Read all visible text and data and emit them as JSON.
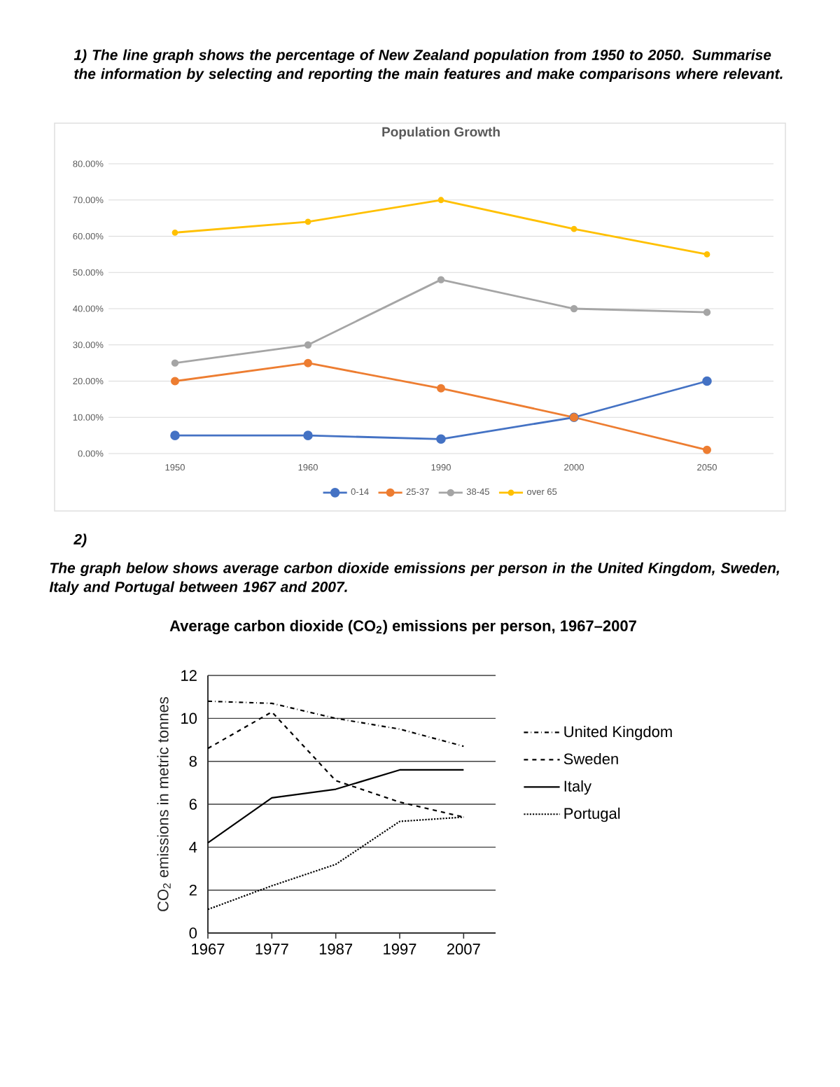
{
  "chart_data": [
    {
      "type": "line",
      "title": "Population Growth",
      "annotations": [
        "1) The line graph shows the percentage of New Zealand population from 1950 to 2050. Summarise the information by selecting and reporting the main features and make comparisons where relevant."
      ],
      "categories": [
        "1950",
        "1960",
        "1990",
        "2000",
        "2050"
      ],
      "series": [
        {
          "name": "0-14",
          "color": "#4472c4",
          "values": [
            5,
            5,
            4,
            10,
            20
          ]
        },
        {
          "name": "25-37",
          "color": "#ed7d31",
          "values": [
            20,
            25,
            18,
            10,
            1
          ]
        },
        {
          "name": "38-45",
          "color": "#a5a5a5",
          "values": [
            25,
            30,
            48,
            40,
            39
          ]
        },
        {
          "name": "over 65",
          "color": "#ffc000",
          "values": [
            61,
            64,
            70,
            62,
            55
          ]
        }
      ],
      "ylim": [
        0,
        80
      ],
      "yticks": [
        {
          "value": 0,
          "label": "0.00%"
        },
        {
          "value": 10,
          "label": "10.00%"
        },
        {
          "value": 20,
          "label": "20.00%"
        },
        {
          "value": 30,
          "label": "30.00%"
        },
        {
          "value": 40,
          "label": "40.00%"
        },
        {
          "value": 50,
          "label": "50.00%"
        },
        {
          "value": 60,
          "label": "60.00%"
        },
        {
          "value": 70,
          "label": "70.00%"
        },
        {
          "value": 80,
          "label": "80.00%"
        }
      ],
      "grid": "y",
      "legend": "bottom",
      "marker": "circle",
      "line_style": "solid"
    },
    {
      "type": "line",
      "title": "Average carbon dioxide (CO$_{2}$) emissions per person, 1967–2007",
      "ylabel": "CO$_{2}$ emissions in metric tonnes",
      "annotations": [
        "2)",
        "The graph below shows average carbon dioxide emissions per person in the United Kingdom, Sweden, Italy and Portugal between 1967 and 2007."
      ],
      "x": [
        1967,
        1977,
        1987,
        1997,
        2007
      ],
      "series": [
        {
          "name": "United Kingdom",
          "color": "#000000",
          "line_style": "dashdot",
          "values": [
            10.8,
            10.7,
            10.0,
            9.5,
            8.7
          ]
        },
        {
          "name": "Sweden",
          "color": "#000000",
          "line_style": "dashed",
          "values": [
            8.6,
            10.3,
            7.1,
            6.1,
            5.4
          ]
        },
        {
          "name": "Italy",
          "color": "#000000",
          "line_style": "solid",
          "values": [
            4.2,
            6.3,
            6.7,
            7.6,
            7.6
          ]
        },
        {
          "name": "Portugal",
          "color": "#000000",
          "line_style": "dotted",
          "values": [
            1.1,
            2.2,
            3.2,
            5.2,
            5.4
          ]
        }
      ],
      "xlim": [
        1967,
        2012
      ],
      "xticks": [
        1967,
        1977,
        1987,
        1997,
        2007
      ],
      "ylim": [
        0,
        12
      ],
      "yticks": [
        0,
        2,
        4,
        6,
        8,
        10,
        12
      ],
      "grid": "y",
      "legend": "right",
      "marker": "none"
    }
  ]
}
